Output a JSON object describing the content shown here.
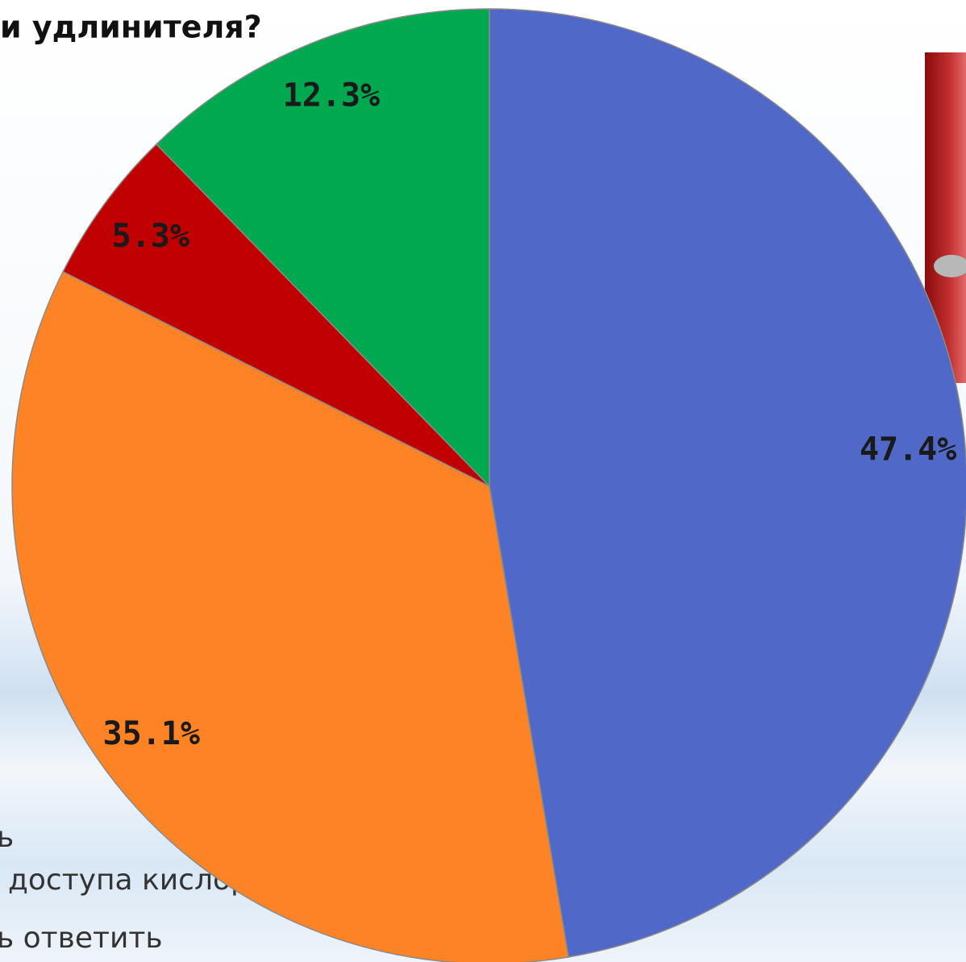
{
  "chart_data": {
    "type": "pie",
    "title": "и удлинителя?",
    "values": [
      47.4,
      35.1,
      5.3,
      12.3
    ],
    "value_labels": [
      "47.4%",
      "35.1%",
      "5.3%",
      "12.3%"
    ],
    "colors": [
      "#5068c8",
      "#fd8324",
      "#c00000",
      "#00a84f"
    ],
    "legend_fragments": [
      "ь",
      "доступа кислорода",
      "ь ответить"
    ]
  }
}
